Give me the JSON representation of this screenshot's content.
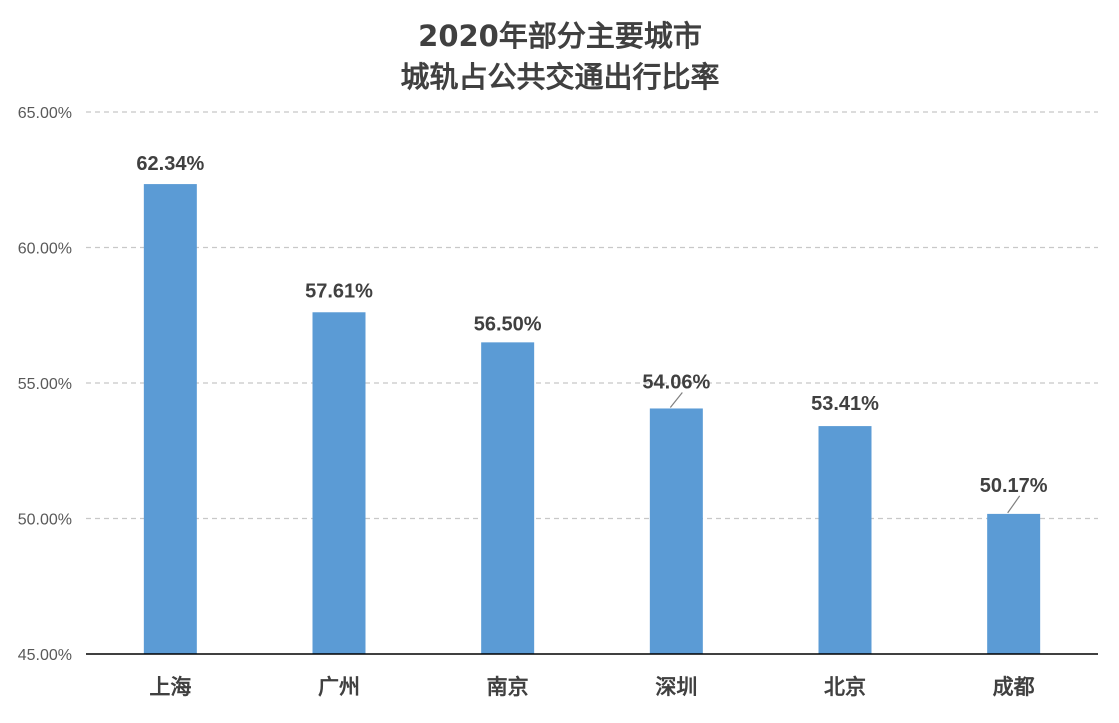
{
  "chart_data": {
    "type": "bar",
    "title": [
      "2020年部分主要城市",
      "城轨占公共交通出行比率"
    ],
    "categories": [
      "上海",
      "广州",
      "南京",
      "深圳",
      "北京",
      "成都"
    ],
    "values": [
      62.34,
      57.61,
      56.5,
      54.06,
      53.41,
      50.17
    ],
    "data_labels": [
      "62.34%",
      "57.61%",
      "56.50%",
      "54.06%",
      "53.41%",
      "50.17%"
    ],
    "ylim": [
      45,
      65
    ],
    "y_ticks": [
      45,
      50,
      55,
      60,
      65
    ],
    "y_tick_labels": [
      "45.00%",
      "50.00%",
      "55.00%",
      "60.00%",
      "65.00%"
    ],
    "xlabel": "",
    "ylabel": "",
    "grid": true,
    "legend": "none",
    "colors": {
      "bar": "#5B9BD5",
      "title": "#404040",
      "grid": "#C8C8C8",
      "axis": "#000000",
      "tick_text": "#595959",
      "label_text": "#404040",
      "leader_line": "#7F7F7F"
    }
  }
}
